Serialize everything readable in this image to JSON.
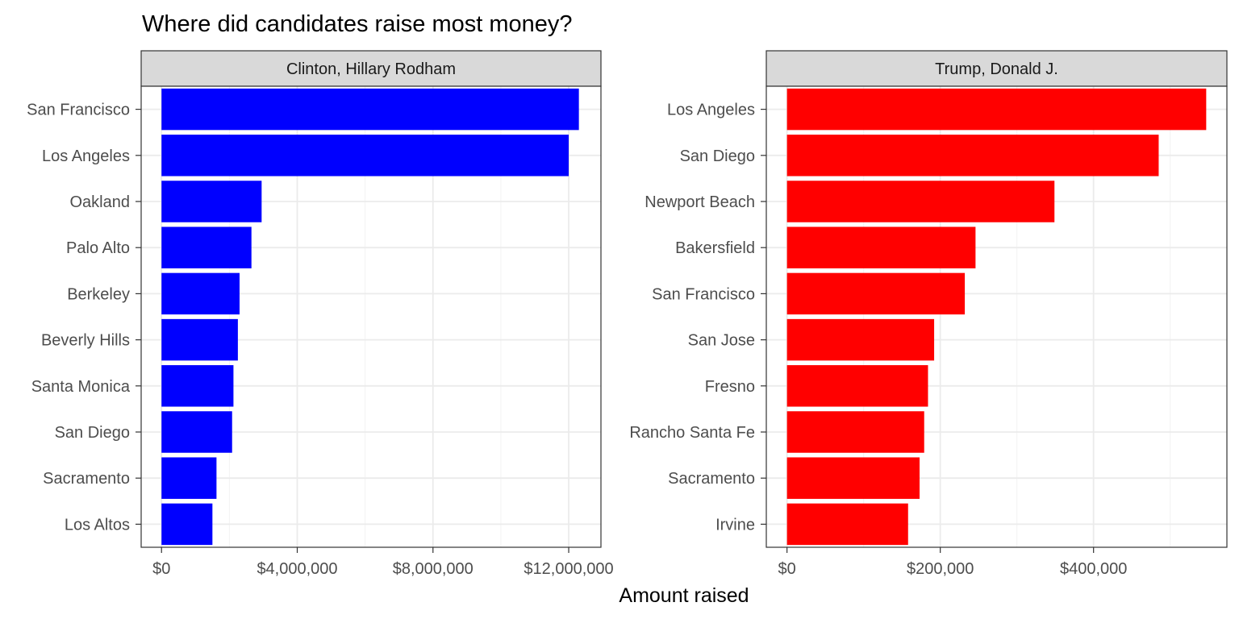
{
  "chart_data": {
    "type": "bar",
    "orientation": "horizontal",
    "title": "Where did candidates raise most money?",
    "xlabel": "Amount raised",
    "ylabel": "",
    "grid": true,
    "facets": [
      {
        "label": "Clinton, Hillary Rodham",
        "color": "#0000ff",
        "xlim": [
          -600000,
          12950000
        ],
        "ticks": [
          {
            "value": 0,
            "label": "$0"
          },
          {
            "value": 4000000,
            "label": "$4,000,000"
          },
          {
            "value": 8000000,
            "label": "$8,000,000"
          },
          {
            "value": 12000000,
            "label": "$12,000,000"
          }
        ],
        "minor_ticks": [
          2000000,
          6000000,
          10000000
        ],
        "categories": [
          "San Francisco",
          "Los Angeles",
          "Oakland",
          "Palo Alto",
          "Berkeley",
          "Beverly Hills",
          "Santa Monica",
          "San Diego",
          "Sacramento",
          "Los Altos"
        ],
        "values": [
          12300000,
          12000000,
          2950000,
          2650000,
          2300000,
          2250000,
          2120000,
          2080000,
          1620000,
          1500000
        ]
      },
      {
        "label": "Trump, Donald J.",
        "color": "#ff0000",
        "xlim": [
          -27000,
          574000
        ],
        "ticks": [
          {
            "value": 0,
            "label": "$0"
          },
          {
            "value": 200000,
            "label": "$200,000"
          },
          {
            "value": 400000,
            "label": "$400,000"
          }
        ],
        "minor_ticks": [
          100000,
          300000,
          500000
        ],
        "categories": [
          "Los Angeles",
          "San Diego",
          "Newport Beach",
          "Bakersfield",
          "San Francisco",
          "San Jose",
          "Fresno",
          "Rancho Santa Fe",
          "Sacramento",
          "Irvine"
        ],
        "values": [
          547000,
          485000,
          349000,
          246000,
          232000,
          192000,
          184000,
          179000,
          173000,
          158000
        ]
      }
    ]
  }
}
